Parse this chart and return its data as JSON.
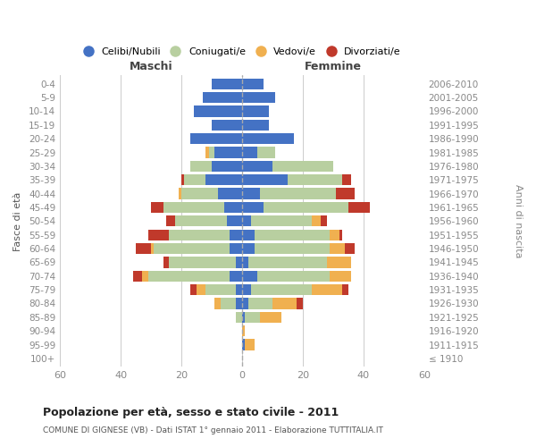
{
  "age_groups": [
    "100+",
    "95-99",
    "90-94",
    "85-89",
    "80-84",
    "75-79",
    "70-74",
    "65-69",
    "60-64",
    "55-59",
    "50-54",
    "45-49",
    "40-44",
    "35-39",
    "30-34",
    "25-29",
    "20-24",
    "15-19",
    "10-14",
    "5-9",
    "0-4"
  ],
  "birth_years": [
    "≤ 1910",
    "1911-1915",
    "1916-1920",
    "1921-1925",
    "1926-1930",
    "1931-1935",
    "1936-1940",
    "1941-1945",
    "1946-1950",
    "1951-1955",
    "1956-1960",
    "1961-1965",
    "1966-1970",
    "1971-1975",
    "1976-1980",
    "1981-1985",
    "1986-1990",
    "1991-1995",
    "1996-2000",
    "2001-2005",
    "2006-2010"
  ],
  "colors": {
    "celibi": "#4472c4",
    "coniugati": "#b8cfa0",
    "vedovi": "#f0b050",
    "divorziati": "#c0392b"
  },
  "maschi": {
    "celibi": [
      0,
      0,
      0,
      0,
      2,
      2,
      4,
      2,
      4,
      4,
      5,
      6,
      8,
      12,
      10,
      9,
      17,
      10,
      16,
      13,
      10
    ],
    "coniugati": [
      0,
      0,
      0,
      2,
      5,
      10,
      27,
      22,
      25,
      20,
      17,
      20,
      12,
      7,
      7,
      2,
      0,
      0,
      0,
      0,
      0
    ],
    "vedovi": [
      0,
      0,
      0,
      0,
      2,
      3,
      2,
      0,
      1,
      0,
      0,
      0,
      1,
      0,
      0,
      1,
      0,
      0,
      0,
      0,
      0
    ],
    "divorziati": [
      0,
      0,
      0,
      0,
      0,
      2,
      3,
      2,
      5,
      7,
      3,
      4,
      0,
      1,
      0,
      0,
      0,
      0,
      0,
      0,
      0
    ]
  },
  "femmine": {
    "celibi": [
      0,
      1,
      0,
      1,
      2,
      3,
      5,
      2,
      4,
      4,
      3,
      7,
      6,
      15,
      10,
      5,
      17,
      9,
      9,
      11,
      7
    ],
    "coniugati": [
      0,
      0,
      0,
      5,
      8,
      20,
      24,
      26,
      25,
      25,
      20,
      28,
      25,
      18,
      20,
      6,
      0,
      0,
      0,
      0,
      0
    ],
    "vedovi": [
      0,
      3,
      1,
      7,
      8,
      10,
      7,
      8,
      5,
      3,
      3,
      0,
      0,
      0,
      0,
      0,
      0,
      0,
      0,
      0,
      0
    ],
    "divorziati": [
      0,
      0,
      0,
      0,
      2,
      2,
      0,
      0,
      3,
      1,
      2,
      7,
      6,
      3,
      0,
      0,
      0,
      0,
      0,
      0,
      0
    ]
  },
  "title": "Popolazione per età, sesso e stato civile - 2011",
  "subtitle": "COMUNE DI GIGNESE (VB) - Dati ISTAT 1° gennaio 2011 - Elaborazione TUTTITALIA.IT",
  "xlabel_left": "Maschi",
  "xlabel_right": "Femmine",
  "ylabel_left": "Fasce di età",
  "ylabel_right": "Anni di nascita",
  "xlim": 60,
  "legend_labels": [
    "Celibi/Nubili",
    "Coniugati/e",
    "Vedovi/e",
    "Divorziati/e"
  ],
  "bg_color": "#ffffff",
  "grid_color": "#cccccc"
}
